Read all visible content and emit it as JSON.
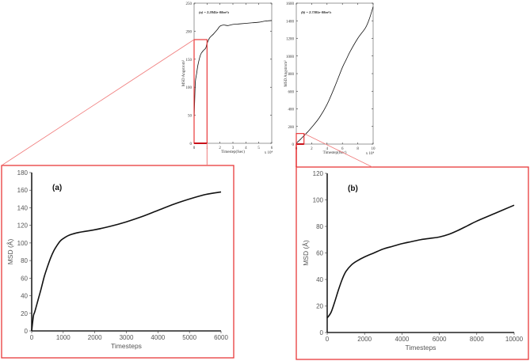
{
  "chart_data": [
    {
      "id": "overview-a",
      "type": "line",
      "annotation": "(a) = 2.2845e-08m²/s",
      "xlabel": "Timestep(fsec)",
      "x_multiplier": "x 10⁴",
      "ylabel": "MSD Angstrom²",
      "xlim": [
        0,
        6
      ],
      "ylim": [
        0,
        250
      ],
      "xticks": [
        "0",
        "1",
        "2",
        "3",
        "4",
        "5",
        "6"
      ],
      "yticks": [
        "0",
        "50",
        "100",
        "150",
        "200",
        "250"
      ],
      "x": [
        0,
        0.05,
        0.1,
        0.2,
        0.3,
        0.5,
        0.7,
        0.9,
        1.0,
        1.2,
        1.5,
        1.8,
        2.0,
        2.3,
        2.6,
        3.0,
        3.5,
        4.0,
        4.5,
        5.0,
        5.5,
        6.0
      ],
      "y": [
        40,
        80,
        110,
        125,
        140,
        158,
        165,
        170,
        178,
        188,
        195,
        203,
        209,
        211,
        210,
        212,
        213,
        214,
        215,
        216,
        218,
        219
      ],
      "highlight_box": {
        "x": [
          0,
          1
        ],
        "y": [
          0,
          185
        ]
      }
    },
    {
      "id": "overview-b",
      "type": "line",
      "annotation": "(b) = 2.7305e-08m²/s",
      "xlabel": "Timestep(fsec)",
      "x_multiplier": "x 10⁴",
      "ylabel": "MSD Angstrom²",
      "xlim": [
        0,
        10
      ],
      "ylim": [
        0,
        1600
      ],
      "xticks": [
        "0",
        "2",
        "4",
        "6",
        "8",
        "10"
      ],
      "yticks": [
        "0",
        "200",
        "400",
        "600",
        "800",
        "1000",
        "1200",
        "1400",
        "1600"
      ],
      "x": [
        0,
        0.5,
        1,
        1.5,
        2,
        3,
        4,
        5,
        6,
        6.5,
        7,
        8,
        9,
        9.5,
        10
      ],
      "y": [
        10,
        50,
        95,
        140,
        190,
        300,
        450,
        650,
        870,
        960,
        1050,
        1200,
        1320,
        1420,
        1560
      ],
      "highlight_box": {
        "x": [
          0,
          1
        ],
        "y": [
          0,
          120
        ]
      }
    },
    {
      "id": "zoom-a",
      "type": "line",
      "annotation": "(a)",
      "xlabel": "Timesteps",
      "ylabel": "MSD (Å)",
      "xlim": [
        0,
        6000
      ],
      "ylim": [
        0,
        180
      ],
      "xticks": [
        "0",
        "1000",
        "2000",
        "3000",
        "4000",
        "5000",
        "6000"
      ],
      "yticks": [
        "0",
        "20",
        "40",
        "60",
        "80",
        "100",
        "120",
        "140",
        "160",
        "180"
      ],
      "x": [
        0,
        30,
        60,
        100,
        200,
        300,
        400,
        500,
        600,
        700,
        800,
        900,
        1000,
        1200,
        1500,
        2000,
        2500,
        3000,
        3500,
        4000,
        4500,
        5000,
        5500,
        6000
      ],
      "y": [
        0,
        10,
        18,
        22,
        35,
        48,
        62,
        73,
        83,
        91,
        97,
        102,
        105,
        109,
        112,
        115,
        119,
        124,
        130,
        137,
        144,
        150,
        155,
        158
      ]
    },
    {
      "id": "zoom-b",
      "type": "line",
      "annotation": "(b)",
      "xlabel": "Timesteps",
      "ylabel": "MSD (Å)",
      "xlim": [
        0,
        10000
      ],
      "ylim": [
        0,
        120
      ],
      "xticks": [
        "0",
        "2000",
        "4000",
        "6000",
        "8000",
        "10000"
      ],
      "yticks": [
        "0",
        "20",
        "40",
        "60",
        "80",
        "100",
        "120"
      ],
      "x": [
        0,
        200,
        400,
        600,
        800,
        1000,
        1300,
        1600,
        2000,
        2500,
        3000,
        3500,
        4000,
        4500,
        5000,
        5500,
        6000,
        6500,
        7000,
        7500,
        8000,
        9000,
        10000
      ],
      "y": [
        11,
        15,
        23,
        32,
        40,
        46,
        51,
        54,
        57,
        60,
        63,
        65,
        67,
        68.5,
        70,
        71,
        72,
        74,
        77,
        80.5,
        84,
        90,
        96
      ]
    }
  ],
  "colors": {
    "zoom_box": "#e8383a",
    "zoom_line": "#f07a7a",
    "curve": "#111111",
    "axis": "#333333"
  }
}
